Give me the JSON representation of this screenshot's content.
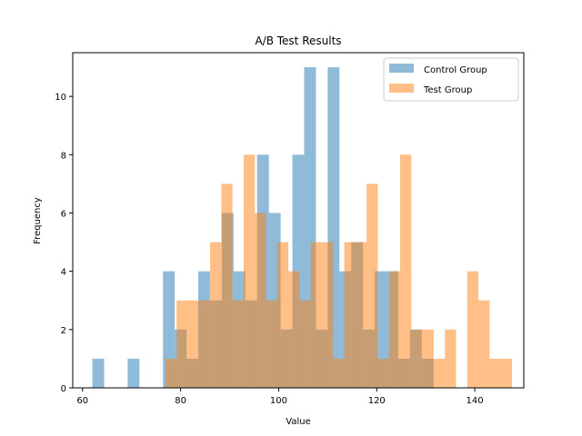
{
  "chart_data": {
    "type": "bar",
    "title": "A/B Test Results",
    "xlabel": "Value",
    "ylabel": "Frequency",
    "xlim": [
      58,
      150
    ],
    "ylim": [
      0,
      11.5
    ],
    "xticks": [
      60,
      80,
      100,
      120,
      140
    ],
    "yticks": [
      0,
      2,
      4,
      6,
      8,
      10
    ],
    "legend_position": "top-right",
    "grid": false,
    "series": [
      {
        "name": "Control Group",
        "color": "#1f77b4",
        "alpha": 0.5,
        "bin_start": 62.0,
        "bin_width": 2.4,
        "counts": [
          1,
          0,
          0,
          1,
          0,
          0,
          4,
          2,
          1,
          4,
          3,
          6,
          4,
          3,
          8,
          6,
          2,
          8,
          11,
          2,
          11,
          4,
          5,
          2,
          4,
          4,
          1,
          2,
          1,
          0,
          0
        ]
      },
      {
        "name": "Test Group",
        "color": "#ff7f0e",
        "alpha": 0.5,
        "bin_start": 76.9,
        "bin_width": 2.28,
        "counts": [
          1,
          3,
          3,
          3,
          5,
          7,
          3,
          8,
          6,
          3,
          5,
          4,
          3,
          5,
          5,
          1,
          5,
          5,
          7,
          1,
          4,
          8,
          2,
          2,
          1,
          2,
          0,
          4,
          3,
          1,
          1
        ]
      }
    ]
  }
}
